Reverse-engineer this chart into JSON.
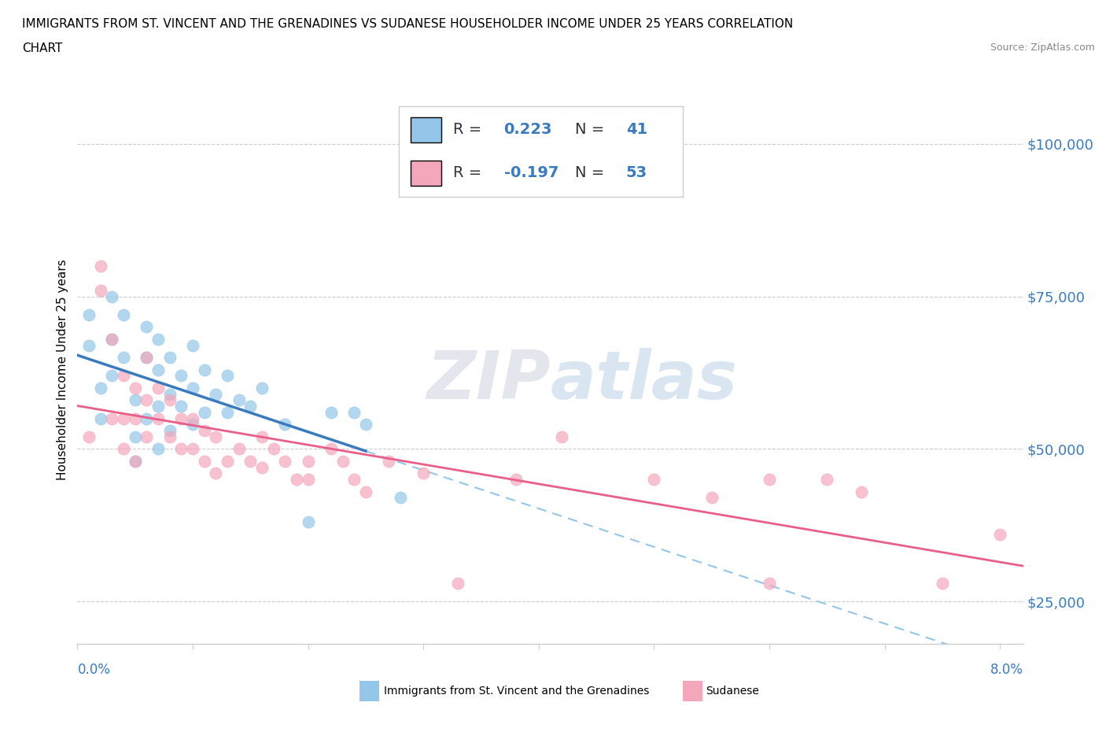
{
  "title_line1": "IMMIGRANTS FROM ST. VINCENT AND THE GRENADINES VS SUDANESE HOUSEHOLDER INCOME UNDER 25 YEARS CORRELATION",
  "title_line2": "CHART",
  "source": "Source: ZipAtlas.com",
  "ylabel": "Householder Income Under 25 years",
  "yticks": [
    25000,
    50000,
    75000,
    100000
  ],
  "ytick_labels": [
    "$25,000",
    "$50,000",
    "$75,000",
    "$100,000"
  ],
  "r1": 0.223,
  "n1": 41,
  "r2": -0.197,
  "n2": 53,
  "color_blue": "#93c6e8",
  "color_pink": "#f4a7bb",
  "color_trend_blue_solid": "#3a7abf",
  "color_trend_blue_dash": "#93c6e8",
  "color_trend_pink": "#e8608a",
  "watermark_color": "#d0dff0",
  "watermark_text_color": "#c8d8ec",
  "legend_label1": "Immigrants from St. Vincent and the Grenadines",
  "legend_label2": "Sudanese",
  "xmin": 0.0,
  "xmax": 0.082,
  "ymin": 18000,
  "ymax": 108000,
  "blue_scatter_x": [
    0.001,
    0.001,
    0.002,
    0.002,
    0.003,
    0.003,
    0.003,
    0.004,
    0.004,
    0.005,
    0.005,
    0.005,
    0.006,
    0.006,
    0.006,
    0.007,
    0.007,
    0.007,
    0.007,
    0.008,
    0.008,
    0.008,
    0.009,
    0.009,
    0.01,
    0.01,
    0.01,
    0.011,
    0.011,
    0.012,
    0.013,
    0.013,
    0.014,
    0.015,
    0.016,
    0.018,
    0.02,
    0.022,
    0.024,
    0.025,
    0.028
  ],
  "blue_scatter_y": [
    72000,
    67000,
    60000,
    55000,
    75000,
    68000,
    62000,
    72000,
    65000,
    58000,
    52000,
    48000,
    70000,
    65000,
    55000,
    68000,
    63000,
    57000,
    50000,
    65000,
    59000,
    53000,
    62000,
    57000,
    67000,
    60000,
    54000,
    63000,
    56000,
    59000,
    62000,
    56000,
    58000,
    57000,
    60000,
    54000,
    38000,
    56000,
    56000,
    54000,
    42000
  ],
  "pink_scatter_x": [
    0.001,
    0.002,
    0.002,
    0.003,
    0.003,
    0.004,
    0.004,
    0.004,
    0.005,
    0.005,
    0.005,
    0.006,
    0.006,
    0.006,
    0.007,
    0.007,
    0.008,
    0.008,
    0.009,
    0.009,
    0.01,
    0.01,
    0.011,
    0.011,
    0.012,
    0.012,
    0.013,
    0.014,
    0.015,
    0.016,
    0.016,
    0.017,
    0.018,
    0.019,
    0.02,
    0.02,
    0.022,
    0.023,
    0.024,
    0.025,
    0.027,
    0.03,
    0.033,
    0.038,
    0.042,
    0.05,
    0.055,
    0.06,
    0.06,
    0.065,
    0.068,
    0.075,
    0.08
  ],
  "pink_scatter_y": [
    52000,
    80000,
    76000,
    68000,
    55000,
    62000,
    55000,
    50000,
    60000,
    55000,
    48000,
    65000,
    58000,
    52000,
    60000,
    55000,
    58000,
    52000,
    55000,
    50000,
    55000,
    50000,
    53000,
    48000,
    52000,
    46000,
    48000,
    50000,
    48000,
    52000,
    47000,
    50000,
    48000,
    45000,
    48000,
    45000,
    50000,
    48000,
    45000,
    43000,
    48000,
    46000,
    28000,
    45000,
    52000,
    45000,
    42000,
    45000,
    28000,
    45000,
    43000,
    28000,
    36000
  ],
  "blue_trend_x_solid_start": 0.0,
  "blue_trend_x_solid_end": 0.025,
  "blue_trend_x_dash_start": 0.025,
  "blue_trend_x_dash_end": 0.082
}
